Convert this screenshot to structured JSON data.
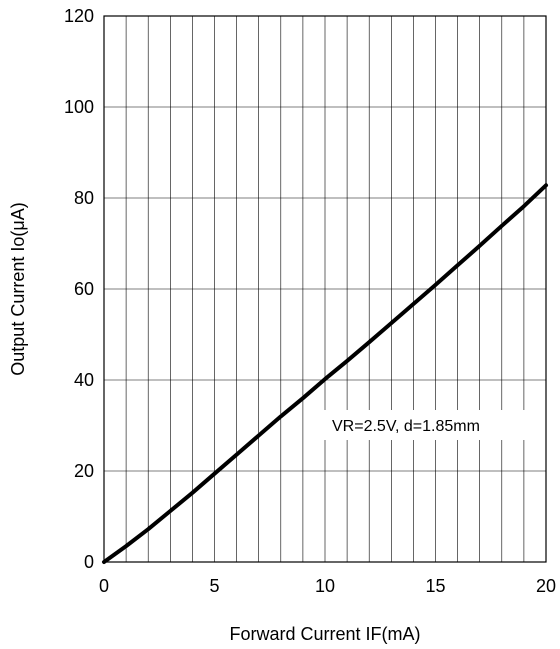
{
  "chart_data": {
    "type": "line",
    "xlabel": "Forward Current IF(mA)",
    "ylabel": "Output Current Io(μA)",
    "xlim": [
      0,
      20
    ],
    "ylim": [
      0,
      120
    ],
    "x_ticks": [
      0,
      5,
      10,
      15,
      20
    ],
    "y_ticks": [
      0,
      20,
      40,
      60,
      80,
      100,
      120
    ],
    "x_tick_labels": [
      "0",
      "5",
      "10",
      "15",
      "20"
    ],
    "y_tick_labels": [
      "0",
      "20",
      "40",
      "60",
      "80",
      "100",
      "120"
    ],
    "grid": "on",
    "annotation": "VR=2.5V, d=1.85mm",
    "series": [
      {
        "x": [
          0,
          1,
          2,
          3,
          4,
          5,
          6,
          7,
          8,
          9,
          10,
          11,
          12,
          13,
          14,
          15,
          16,
          17,
          18,
          19,
          20
        ],
        "y": [
          0,
          3.5,
          7.2,
          11.2,
          15.2,
          19.4,
          23.6,
          27.8,
          32,
          36,
          40.2,
          44.2,
          48.3,
          52.5,
          56.7,
          60.9,
          65.2,
          69.5,
          73.9,
          78.2,
          82.8
        ]
      }
    ]
  }
}
